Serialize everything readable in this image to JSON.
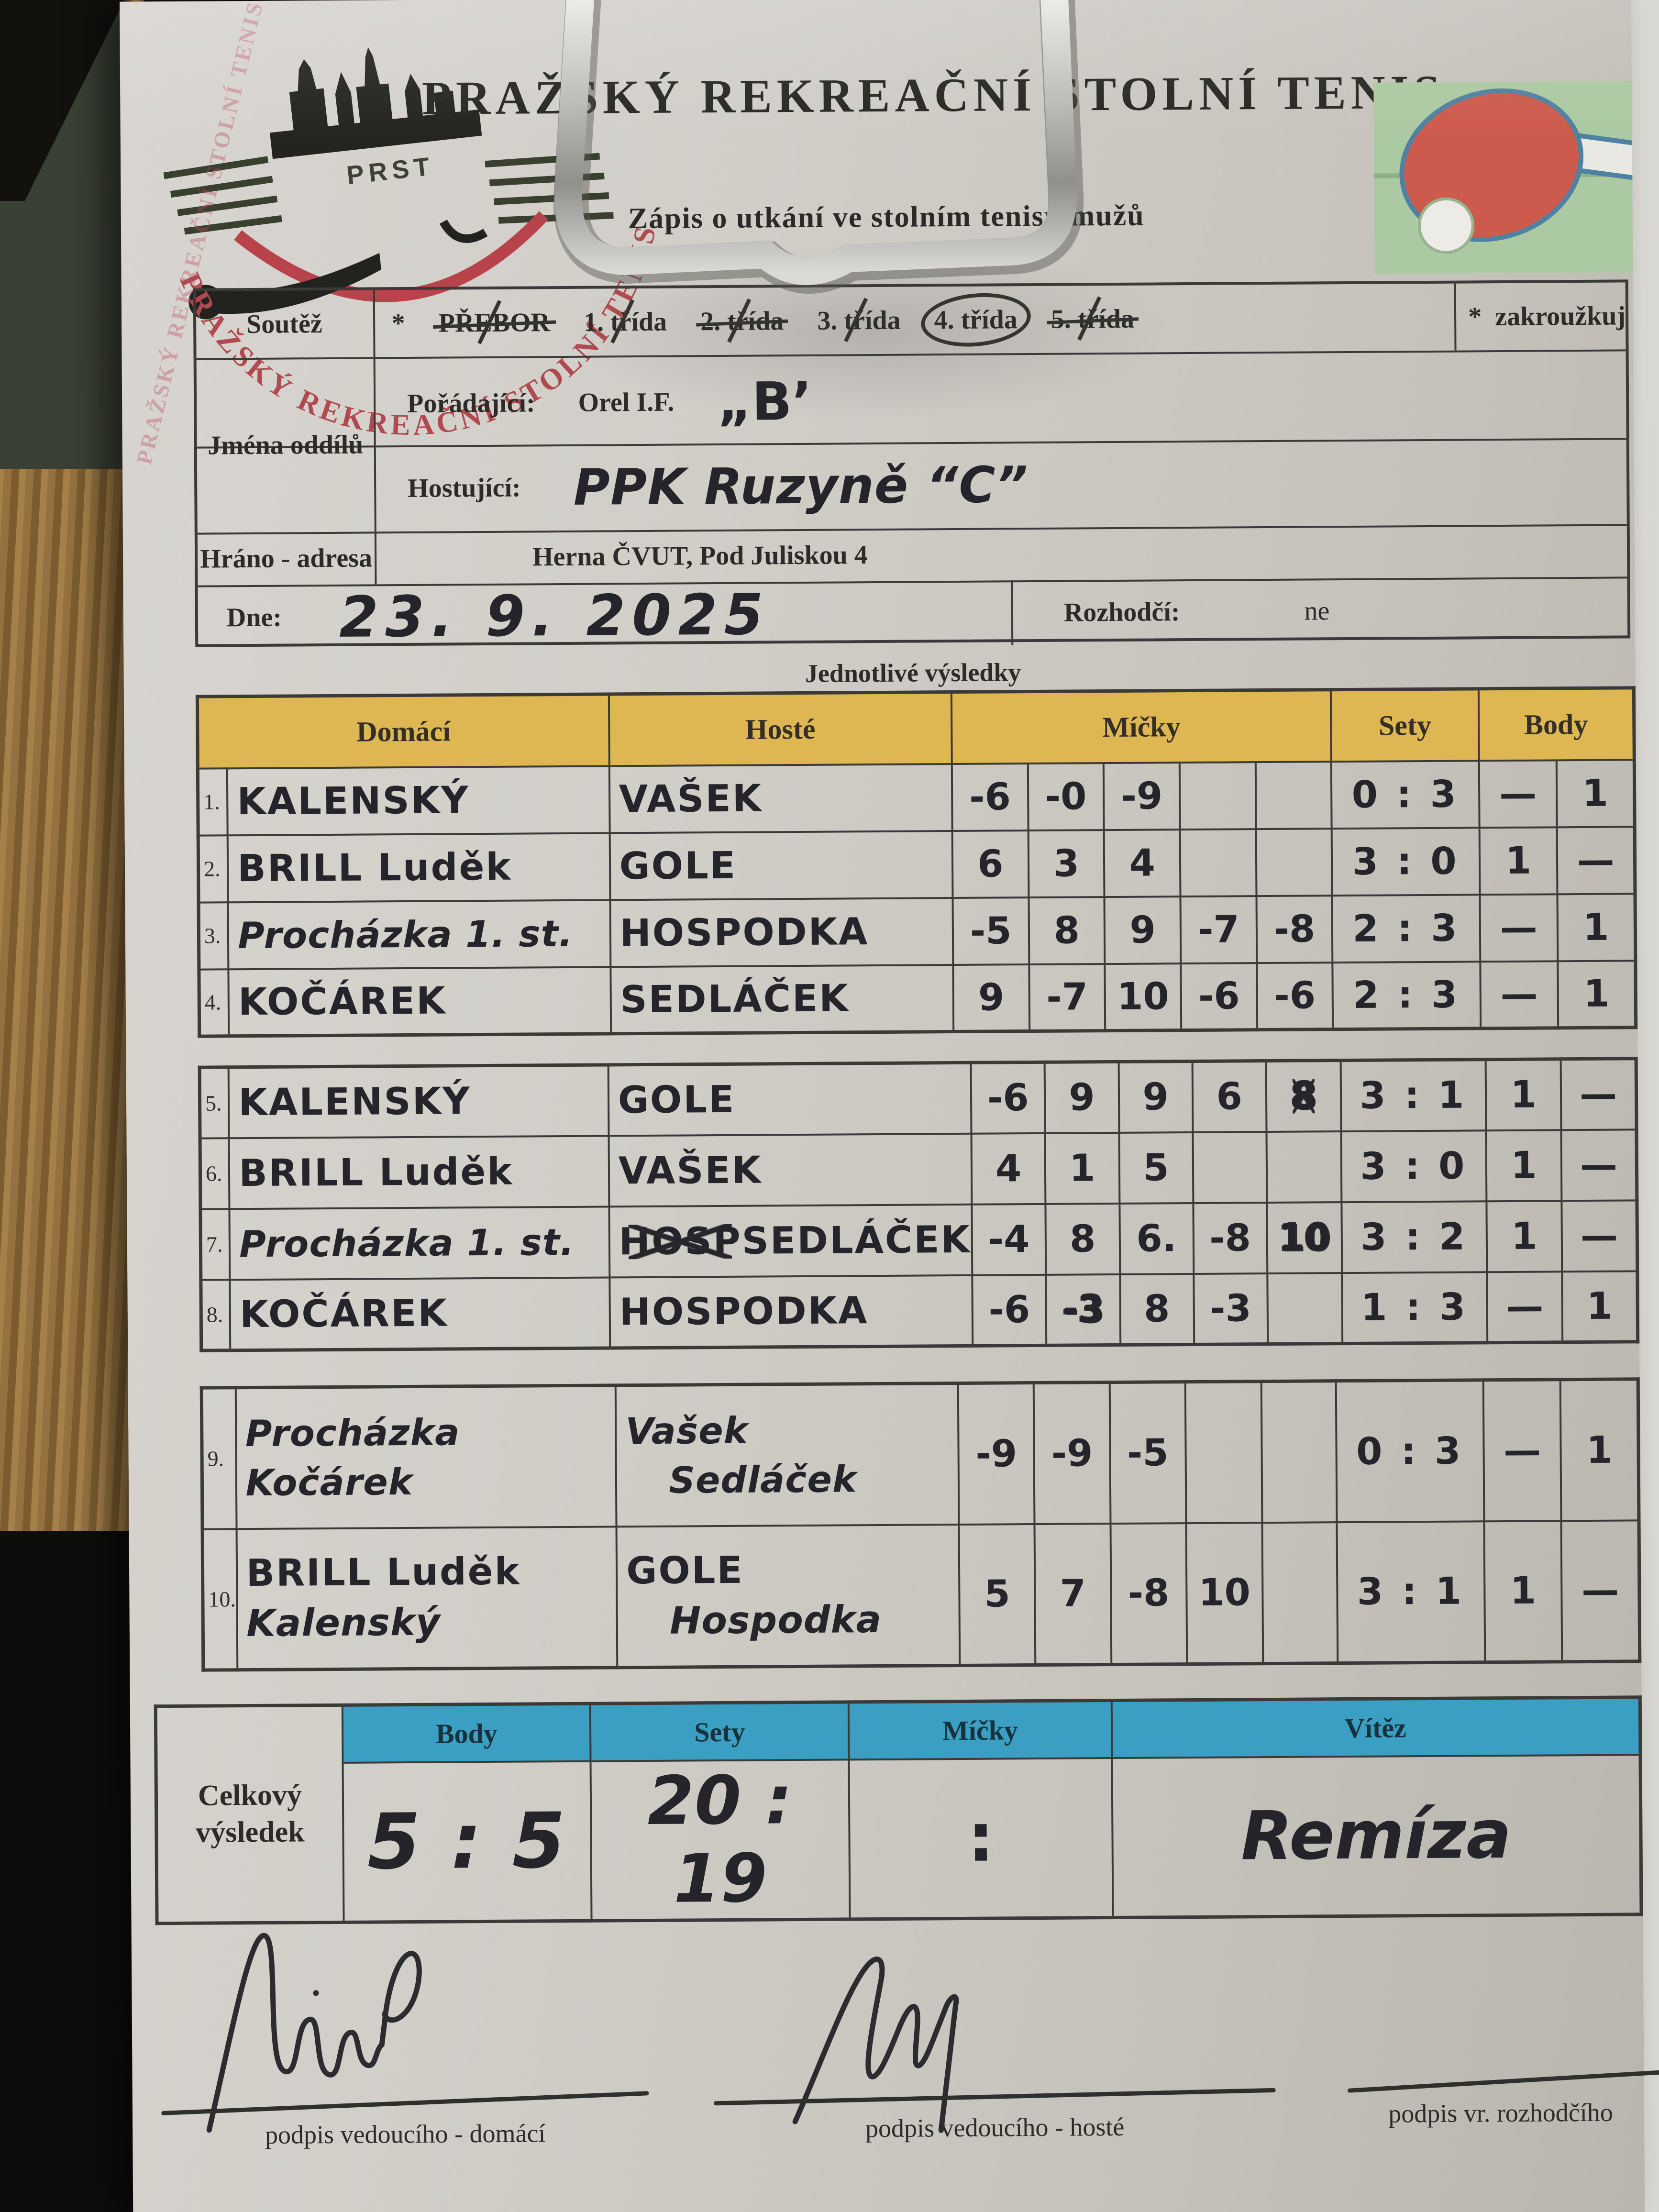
{
  "palette": {
    "results_header": "#dfb752",
    "summary_header": "#3a9fc2",
    "stamp_red": "#b14a50",
    "paddle_red": "#cd5b4d",
    "paper": "#cfccc6"
  },
  "header": {
    "title": "PRAŽSKÝ REKREAČNÍ STOLNÍ TENIS",
    "subtitle": "Zápis o utkání ve stolním tenisu mužů"
  },
  "logo": {
    "abbr": "PRST",
    "arc_text": "PRAŽSKÝ REKREAČNÍ STOLNÍ TENIS"
  },
  "info": {
    "soutez_label": "Soutěž",
    "star": "*",
    "options": [
      {
        "label": "PŘEBOR",
        "state": "strike-both"
      },
      {
        "label": "1. třída",
        "state": "strike-slash"
      },
      {
        "label": "2. třída",
        "state": "strike-both"
      },
      {
        "label": "3. třída",
        "state": "strike-slash"
      },
      {
        "label": "4. třída",
        "state": "circled"
      },
      {
        "label": "5. třída",
        "state": "strike-both"
      }
    ],
    "zakrouzkuj": "zakroužkuj",
    "jmena_label": "Jména  oddílů",
    "poradajici_label": "Pořádající:",
    "poradajici_print": "Orel I.F.",
    "poradajici_hand": "„B’",
    "hostujici_label": "Hostující:",
    "hostujici_hand": "PPK Ruzyně “C”",
    "hrano_label": "Hráno - adresa",
    "hrano_value": "Herna ČVUT, Pod Juliskou 4",
    "dne_label": "Dne:",
    "dne_hand": "23. 9. 2025",
    "rozhodci_label": "Rozhodčí:",
    "rozhodci_value": "ne"
  },
  "results": {
    "section_title": "Jednotlivé  výsledky",
    "headers": {
      "domaci": "Domácí",
      "hoste": "Hosté",
      "micky": "Míčky",
      "sety": "Sety",
      "body": "Body"
    },
    "tables": [
      {
        "rows": [
          {
            "no": "1.",
            "domaci": [
              "KALENSKÝ"
            ],
            "hoste": [
              "VAŠEK"
            ],
            "micky": [
              "-6",
              "-0",
              "-9",
              "",
              ""
            ],
            "scrib": [],
            "crossed": [],
            "sety": "0 : 3",
            "body_d": "—",
            "body_h": "1",
            "cls": "caps"
          },
          {
            "no": "2.",
            "domaci": [
              "BRILL  Luděk"
            ],
            "hoste": [
              "GOLE"
            ],
            "micky": [
              "6",
              "3",
              "4",
              "",
              ""
            ],
            "scrib": [],
            "crossed": [],
            "sety": "3 : 0",
            "body_d": "1",
            "body_h": "—",
            "cls": "caps"
          },
          {
            "no": "3.",
            "domaci": [
              "Procházka 1. st."
            ],
            "hoste": [
              "HOSPODKA"
            ],
            "micky": [
              "-5",
              "8",
              "9",
              "-7",
              "-8"
            ],
            "scrib": [],
            "crossed": [],
            "sety": "2 : 3",
            "body_d": "—",
            "body_h": "1",
            "cls": "cursive"
          },
          {
            "no": "4.",
            "domaci": [
              "KOČÁREK"
            ],
            "hoste": [
              "SEDLÁČEK"
            ],
            "micky": [
              "9",
              "-7",
              "10",
              "-6",
              "-6"
            ],
            "scrib": [],
            "crossed": [],
            "sety": "2 : 3",
            "body_d": "—",
            "body_h": "1",
            "cls": "caps"
          }
        ]
      },
      {
        "rows": [
          {
            "no": "5.",
            "domaci": [
              "KALENSKÝ"
            ],
            "hoste": [
              "GOLE"
            ],
            "micky": [
              "-6",
              "9",
              "9",
              "6",
              "8"
            ],
            "scrib": [
              4
            ],
            "crossed": [
              4
            ],
            "sety": "3 : 1",
            "body_d": "1",
            "body_h": "—",
            "cls": "caps"
          },
          {
            "no": "6.",
            "domaci": [
              "BRILL  Luděk"
            ],
            "hoste": [
              "VAŠEK"
            ],
            "micky": [
              "4",
              "1",
              "5",
              "",
              ""
            ],
            "scrib": [],
            "crossed": [],
            "sety": "3 : 0",
            "body_d": "1",
            "body_h": "—",
            "cls": "caps"
          },
          {
            "no": "7.",
            "domaci": [
              "Procházka 1. st."
            ],
            "hoste": [
              "SEDLÁČEK"
            ],
            "hoste_struck": "HOSP",
            "micky": [
              "-4",
              "8",
              "6.",
              "-8",
              "10"
            ],
            "scrib": [
              4
            ],
            "crossed": [],
            "sety": "3 : 2",
            "body_d": "1",
            "body_h": "—",
            "cls": "cursive"
          },
          {
            "no": "8.",
            "domaci": [
              "KOČÁREK"
            ],
            "hoste": [
              "HOSPODKA"
            ],
            "micky": [
              "-6",
              "-3",
              "8",
              "-3",
              ""
            ],
            "scrib": [
              1
            ],
            "crossed": [],
            "sety": "1 : 3",
            "body_d": "—",
            "body_h": "1",
            "cls": "caps"
          }
        ]
      },
      {
        "rows": [
          {
            "no": "9.",
            "tall": true,
            "domaci": [
              "Procházka",
              "Kočárek"
            ],
            "hoste": [
              "Vašek",
              "Sedláček"
            ],
            "micky": [
              "-9",
              "-9",
              "-5",
              "",
              ""
            ],
            "scrib": [],
            "crossed": [],
            "sety": "0 : 3",
            "body_d": "—",
            "body_h": "1",
            "cls": "cursive"
          },
          {
            "no": "10.",
            "tall": true,
            "domaci": [
              "BRILL  Luděk",
              "Kalenský"
            ],
            "hoste": [
              "GOLE",
              "Hospodka"
            ],
            "micky": [
              "5",
              "7",
              "-8",
              "10",
              ""
            ],
            "scrib": [],
            "crossed": [],
            "sety": "3 : 1",
            "body_d": "1",
            "body_h": "—",
            "cls": "caps"
          }
        ]
      }
    ]
  },
  "summary": {
    "label": "Celkový výsledek",
    "headers": [
      "Body",
      "Sety",
      "Míčky",
      "Vítěz"
    ],
    "body": "5 : 5",
    "sety": "20 : 19",
    "micky": ":",
    "vitez": "Remíza"
  },
  "signatures": {
    "labels": [
      "podpis vedoucího - domácí",
      "podpis vedoucího - hosté",
      "podpis vr. rozhodčího"
    ]
  }
}
